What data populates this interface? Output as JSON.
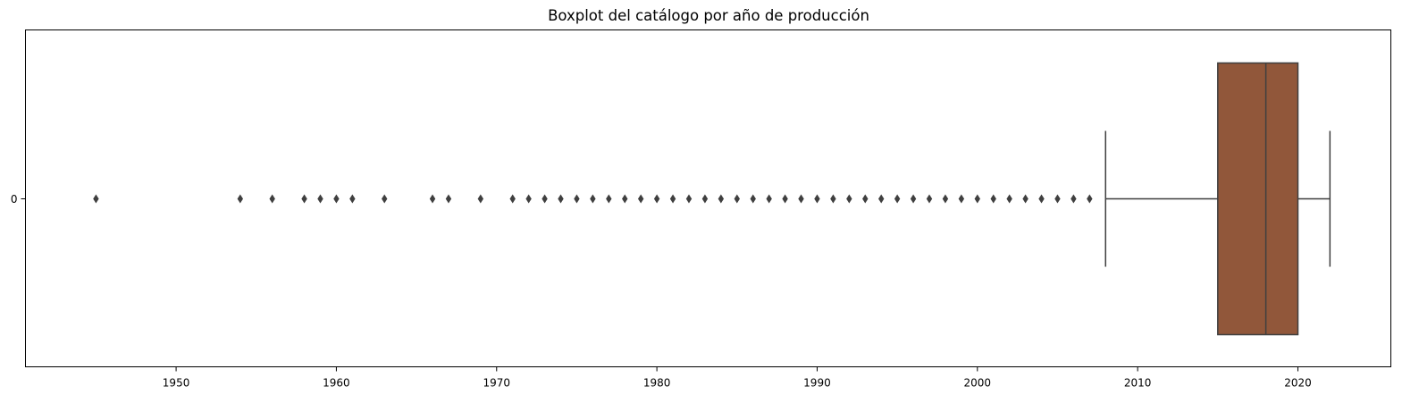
{
  "chart_data": {
    "type": "boxplot",
    "title": "Boxplot del catálogo por año de producción",
    "xlabel": "",
    "ylabel": "",
    "orientation": "horizontal",
    "xlim": [
      1940.6,
      2025.8
    ],
    "x_ticks": [
      1950,
      1960,
      1970,
      1980,
      1990,
      2000,
      2010,
      2020
    ],
    "y_ticks": [
      "0"
    ],
    "grid": false,
    "box_color": "#91573a",
    "line_color": "#3f3f3f",
    "boxes": [
      {
        "category": "0",
        "q1": 2015,
        "median": 2018,
        "q3": 2020,
        "whisker_low": 2008,
        "whisker_high": 2022,
        "outliers": [
          1945,
          1954,
          1956,
          1958,
          1959,
          1960,
          1961,
          1963,
          1966,
          1967,
          1969,
          1971,
          1972,
          1973,
          1974,
          1975,
          1976,
          1977,
          1978,
          1979,
          1980,
          1981,
          1982,
          1983,
          1984,
          1985,
          1986,
          1987,
          1988,
          1989,
          1990,
          1991,
          1992,
          1993,
          1994,
          1995,
          1996,
          1997,
          1998,
          1999,
          2000,
          2001,
          2002,
          2003,
          2004,
          2005,
          2006,
          2007
        ]
      }
    ]
  }
}
